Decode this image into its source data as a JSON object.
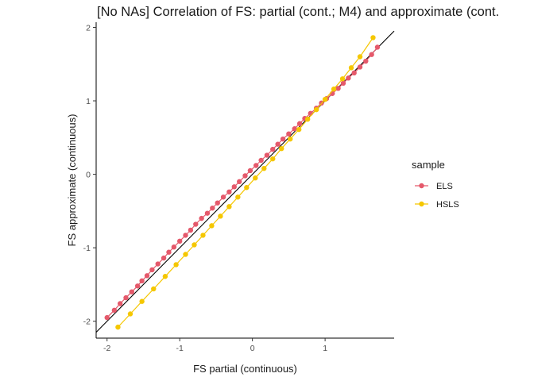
{
  "chart_data": {
    "type": "scatter",
    "title": "[No NAs] Correlation of FS: partial (cont.; M4) and approximate (cont.",
    "xlabel": "FS partial (continuous)",
    "ylabel": "FS approximate (continuous)",
    "xlim": [
      -2.15,
      1.95
    ],
    "ylim": [
      -2.23,
      2.07
    ],
    "x_ticks": [
      "-2",
      "-1",
      "0",
      "1"
    ],
    "x_tick_values": [
      -2,
      -1,
      0,
      1
    ],
    "y_ticks": [
      "-2",
      "-1",
      "0",
      "1",
      "2"
    ],
    "y_tick_values": [
      -2,
      -1,
      0,
      1,
      2
    ],
    "reference_line": {
      "slope": 1,
      "intercept": 0,
      "color": "#000000"
    },
    "grid": false,
    "legend": {
      "title": "sample",
      "position": "right"
    },
    "series": [
      {
        "name": "ELS",
        "color": "#E5596B",
        "x": [
          -2.0,
          -1.9,
          -1.82,
          -1.74,
          -1.66,
          -1.58,
          -1.52,
          -1.45,
          -1.38,
          -1.3,
          -1.22,
          -1.15,
          -1.08,
          -1.0,
          -0.92,
          -0.85,
          -0.78,
          -0.7,
          -0.62,
          -0.55,
          -0.48,
          -0.4,
          -0.32,
          -0.25,
          -0.18,
          -0.1,
          -0.03,
          0.05,
          0.12,
          0.2,
          0.28,
          0.35,
          0.42,
          0.5,
          0.58,
          0.65,
          0.72,
          0.8,
          0.88,
          0.95,
          1.02,
          1.1,
          1.18,
          1.25,
          1.32,
          1.4,
          1.48,
          1.56,
          1.64,
          1.72
        ],
        "y": [
          -1.95,
          -1.85,
          -1.76,
          -1.68,
          -1.6,
          -1.52,
          -1.45,
          -1.38,
          -1.3,
          -1.22,
          -1.14,
          -1.06,
          -0.99,
          -0.91,
          -0.83,
          -0.76,
          -0.68,
          -0.6,
          -0.53,
          -0.46,
          -0.39,
          -0.31,
          -0.24,
          -0.17,
          -0.1,
          -0.02,
          0.05,
          0.12,
          0.19,
          0.26,
          0.34,
          0.41,
          0.48,
          0.55,
          0.62,
          0.69,
          0.76,
          0.83,
          0.9,
          0.97,
          1.03,
          1.1,
          1.17,
          1.24,
          1.31,
          1.38,
          1.46,
          1.54,
          1.63,
          1.73
        ]
      },
      {
        "name": "HSLS",
        "color": "#F5C700",
        "x": [
          -1.85,
          -1.68,
          -1.52,
          -1.36,
          -1.2,
          -1.05,
          -0.92,
          -0.8,
          -0.68,
          -0.56,
          -0.44,
          -0.32,
          -0.2,
          -0.08,
          0.04,
          0.16,
          0.28,
          0.4,
          0.52,
          0.64,
          0.76,
          0.88,
          1.0,
          1.12,
          1.24,
          1.36,
          1.48,
          1.66
        ],
        "y": [
          -2.08,
          -1.9,
          -1.73,
          -1.56,
          -1.39,
          -1.23,
          -1.09,
          -0.96,
          -0.83,
          -0.7,
          -0.57,
          -0.44,
          -0.31,
          -0.18,
          -0.05,
          0.08,
          0.21,
          0.35,
          0.48,
          0.61,
          0.75,
          0.88,
          1.02,
          1.16,
          1.3,
          1.45,
          1.6,
          1.86
        ]
      }
    ]
  }
}
